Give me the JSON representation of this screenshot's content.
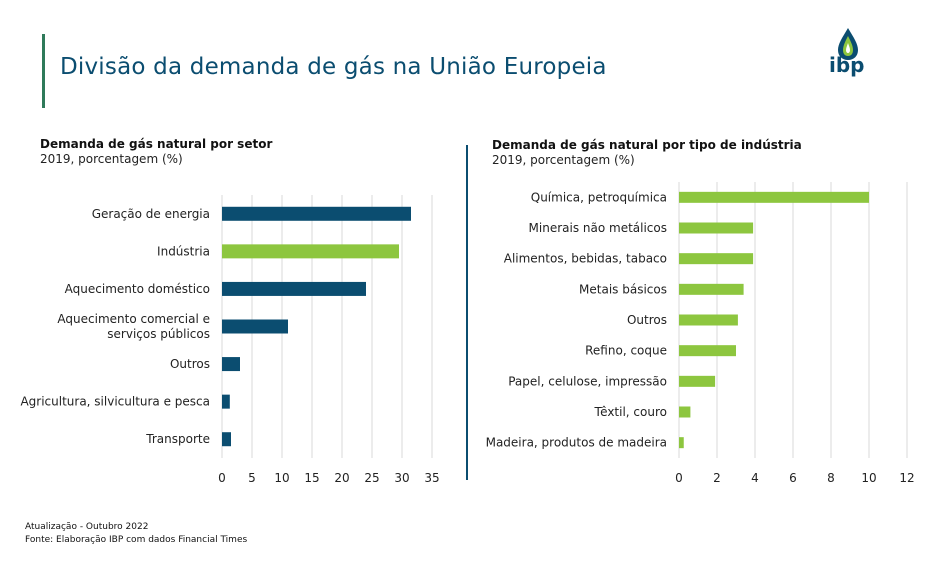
{
  "header": {
    "title": "Divisão da demanda de gás na União Europeia",
    "logo_text": "ibp"
  },
  "colors": {
    "dark_blue": "#0b4d70",
    "green": "#8dc63f",
    "accent_bar": "#2f7a5a"
  },
  "chart_data": [
    {
      "type": "bar",
      "orientation": "horizontal",
      "title": "Demanda de gás natural por setor",
      "subtitle": "2019, porcentagem (%)",
      "categories": [
        "Geração de energia",
        "Indústria",
        "Aquecimento doméstico",
        "Aquecimento comercial e serviços públicos",
        "Outros",
        "Agricultura, silvicultura e pesca",
        "Transporte"
      ],
      "category_lines": [
        [
          "Geração de energia"
        ],
        [
          "Indústria"
        ],
        [
          "Aquecimento doméstico"
        ],
        [
          "Aquecimento comercial e",
          "serviços públicos"
        ],
        [
          "Outros"
        ],
        [
          "Agricultura, silvicultura e pesca"
        ],
        [
          "Transporte"
        ]
      ],
      "values": [
        31.5,
        29.5,
        24,
        11,
        3,
        1.3,
        1.5
      ],
      "bar_colors": [
        "#0b4d70",
        "#8dc63f",
        "#0b4d70",
        "#0b4d70",
        "#0b4d70",
        "#0b4d70",
        "#0b4d70"
      ],
      "xlim": [
        0,
        35
      ],
      "xticks": [
        0,
        5,
        10,
        15,
        20,
        25,
        30,
        35
      ],
      "grid": true
    },
    {
      "type": "bar",
      "orientation": "horizontal",
      "title": "Demanda de gás natural por tipo de indústria",
      "subtitle": "2019, porcentagem (%)",
      "categories": [
        "Química, petroquímica",
        "Minerais não metálicos",
        "Alimentos, bebidas, tabaco",
        "Metais básicos",
        "Outros",
        "Refino, coque",
        "Papel, celulose, impressão",
        "Têxtil, couro",
        "Madeira, produtos de madeira"
      ],
      "values": [
        10,
        3.9,
        3.9,
        3.4,
        3.1,
        3.0,
        1.9,
        0.6,
        0.25
      ],
      "bar_colors": [
        "#8dc63f",
        "#8dc63f",
        "#8dc63f",
        "#8dc63f",
        "#8dc63f",
        "#8dc63f",
        "#8dc63f",
        "#8dc63f",
        "#8dc63f"
      ],
      "xlim": [
        0,
        12
      ],
      "xticks": [
        0,
        2,
        4,
        6,
        8,
        10,
        12
      ],
      "grid": true
    }
  ],
  "footer": {
    "update": "Atualização - Outubro 2022",
    "source": "Fonte: Elaboração IBP com dados Financial Times"
  }
}
